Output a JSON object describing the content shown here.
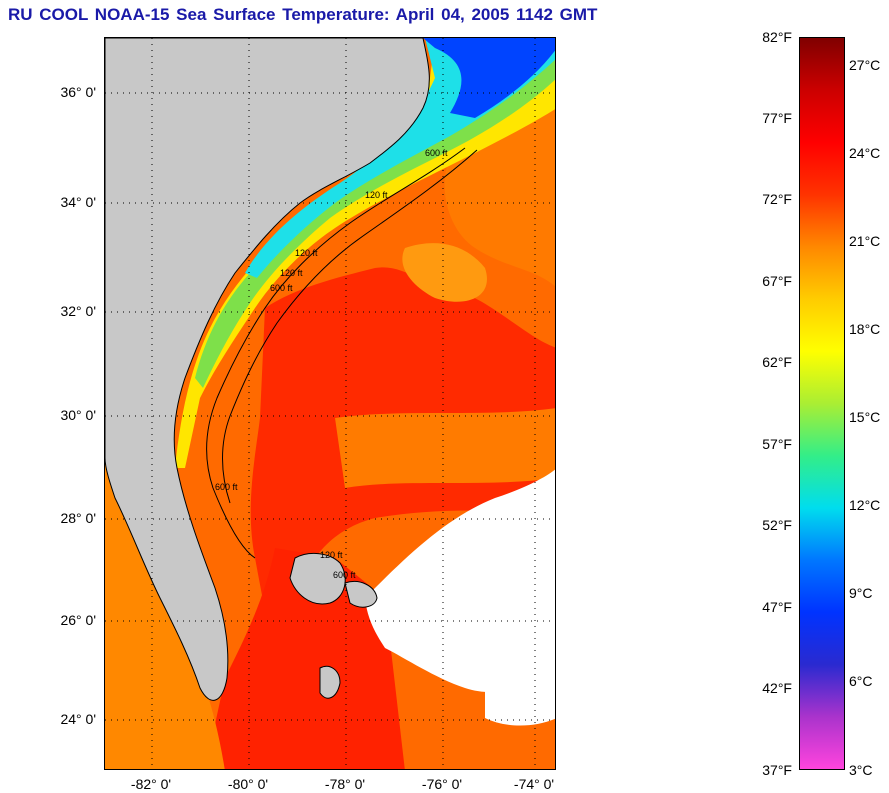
{
  "title": "RU COOL  NOAA-15  Sea Surface Temperature:  April 04, 2005 1142 GMT",
  "map": {
    "lat_labels": [
      "36° 0'",
      "34° 0'",
      "32° 0'",
      "30° 0'",
      "28° 0'",
      "26° 0'",
      "24° 0'"
    ],
    "lon_labels": [
      "-82° 0'",
      "-80° 0'",
      "-78° 0'",
      "-76° 0'",
      "-74° 0'"
    ],
    "isobath_labels": [
      "120 ft",
      "120 ft",
      "600 ft",
      "600 ft",
      "120 ft",
      "600 ft",
      "120 ft",
      "600 ft"
    ],
    "colors": {
      "land": "#c8c8c8",
      "cloud": "#ffffff",
      "gulf_stream": "#ff2a00",
      "warm": "#ff7a00",
      "shelf_yellow": "#ffe600",
      "shelf_green": "#7ee04a",
      "cold_cyan": "#1ee0e8",
      "cold_blue": "#0044ff"
    }
  },
  "colorbar": {
    "fahrenheit_labels": [
      "82°F",
      "77°F",
      "72°F",
      "67°F",
      "62°F",
      "57°F",
      "52°F",
      "47°F",
      "42°F",
      "37°F"
    ],
    "celsius_labels": [
      "27°C",
      "24°C",
      "21°C",
      "18°C",
      "15°C",
      "12°C",
      "9°C",
      "6°C",
      "3°C"
    ],
    "range_f": [
      37,
      82
    ],
    "range_c": [
      3,
      27.8
    ],
    "stops": [
      "#ff44dd",
      "#aa33cc",
      "#2a2ad0",
      "#0033ff",
      "#0077ff",
      "#00ddee",
      "#33ee88",
      "#aaee33",
      "#ffff00",
      "#ffcc00",
      "#ff8800",
      "#ff3300",
      "#ff0000",
      "#cc0000",
      "#800000"
    ]
  }
}
